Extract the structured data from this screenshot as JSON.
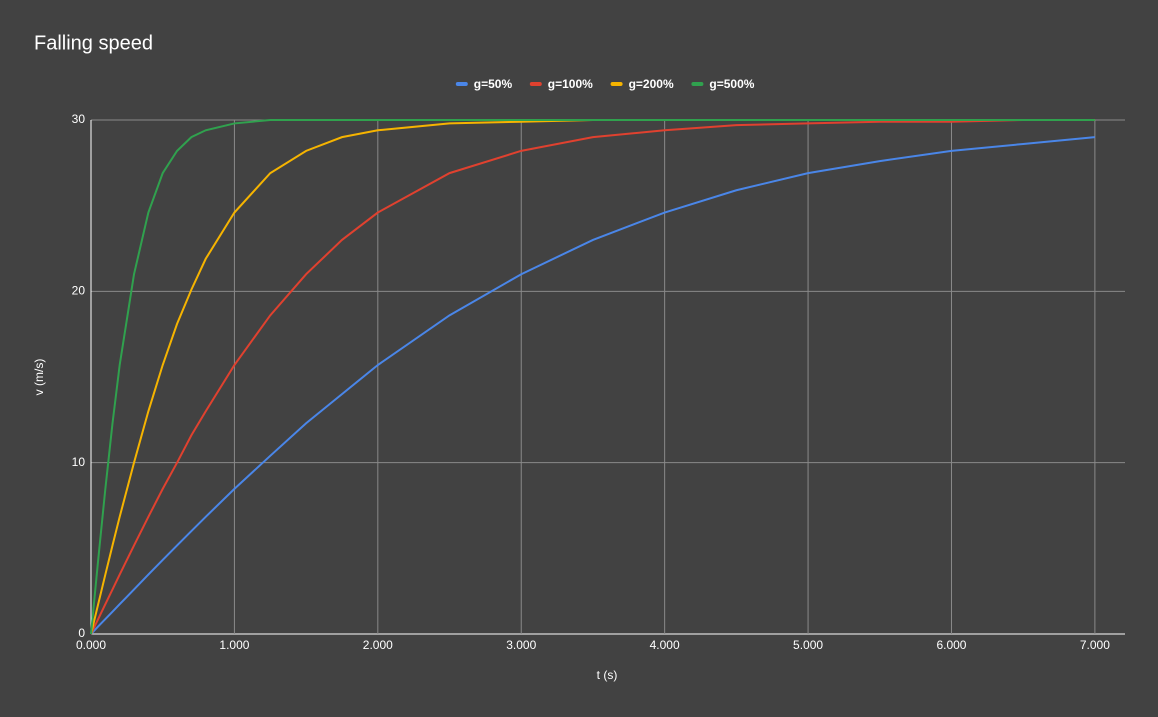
{
  "chart_data": {
    "type": "line",
    "title": "Falling speed",
    "x_label": "t (s)",
    "y_label": "v (m/s)",
    "x": [
      0,
      0.05,
      0.1,
      0.15,
      0.2,
      0.3,
      0.4,
      0.5,
      0.6,
      0.7,
      0.8,
      1.0,
      1.25,
      1.5,
      1.75,
      2,
      2.5,
      3,
      3.5,
      4,
      4.5,
      5,
      5.5,
      6,
      6.5,
      7
    ],
    "series": [
      {
        "name": "g=50%",
        "color": "#4a86e8",
        "values": [
          0,
          0.44,
          0.87,
          1.3,
          1.74,
          2.6,
          3.47,
          4.32,
          5.17,
          6.01,
          6.84,
          8.47,
          10.4,
          12.3,
          14.0,
          15.7,
          18.6,
          21.0,
          23.0,
          24.6,
          25.9,
          26.9,
          27.6,
          28.2,
          28.6,
          29.0
        ]
      },
      {
        "name": "g=100%",
        "color": "#e0412f",
        "values": [
          0,
          0.87,
          1.74,
          2.6,
          3.47,
          5.17,
          6.84,
          8.47,
          10.0,
          11.6,
          13.0,
          15.7,
          18.6,
          21.0,
          23.0,
          24.6,
          26.9,
          28.2,
          29.0,
          29.4,
          29.7,
          29.8,
          29.9,
          29.9,
          30.0,
          30.0
        ]
      },
      {
        "name": "g=200%",
        "color": "#f6b400",
        "values": [
          0,
          1.74,
          3.47,
          5.17,
          6.84,
          10.0,
          13.0,
          15.7,
          18.1,
          20.1,
          21.9,
          24.6,
          26.9,
          28.2,
          29.0,
          29.4,
          29.8,
          29.9,
          30.0,
          30.0,
          30.0,
          30.0,
          30.0,
          30.0,
          30.0,
          30.0
        ]
      },
      {
        "name": "g=500%",
        "color": "#30a14e",
        "values": [
          0,
          4.32,
          8.47,
          12.3,
          15.7,
          21.0,
          24.6,
          26.9,
          28.2,
          29.0,
          29.4,
          29.8,
          30.0,
          30.0,
          30.0,
          30.0,
          30.0,
          30.0,
          30.0,
          30.0,
          30.0,
          30.0,
          30.0,
          30.0,
          30.0,
          30.0
        ]
      }
    ],
    "xlim": [
      0,
      7.21
    ],
    "ylim": [
      0,
      30
    ],
    "xticks": [
      {
        "value": 0,
        "label": "0.000"
      },
      {
        "value": 1,
        "label": "1.000"
      },
      {
        "value": 2,
        "label": "2.000"
      },
      {
        "value": 3,
        "label": "3.000"
      },
      {
        "value": 4,
        "label": "4.000"
      },
      {
        "value": 5,
        "label": "5.000"
      },
      {
        "value": 6,
        "label": "6.000"
      },
      {
        "value": 7,
        "label": "7.000"
      }
    ],
    "yticks": [
      0,
      10,
      20,
      30
    ],
    "grid": true,
    "legend": "top"
  }
}
